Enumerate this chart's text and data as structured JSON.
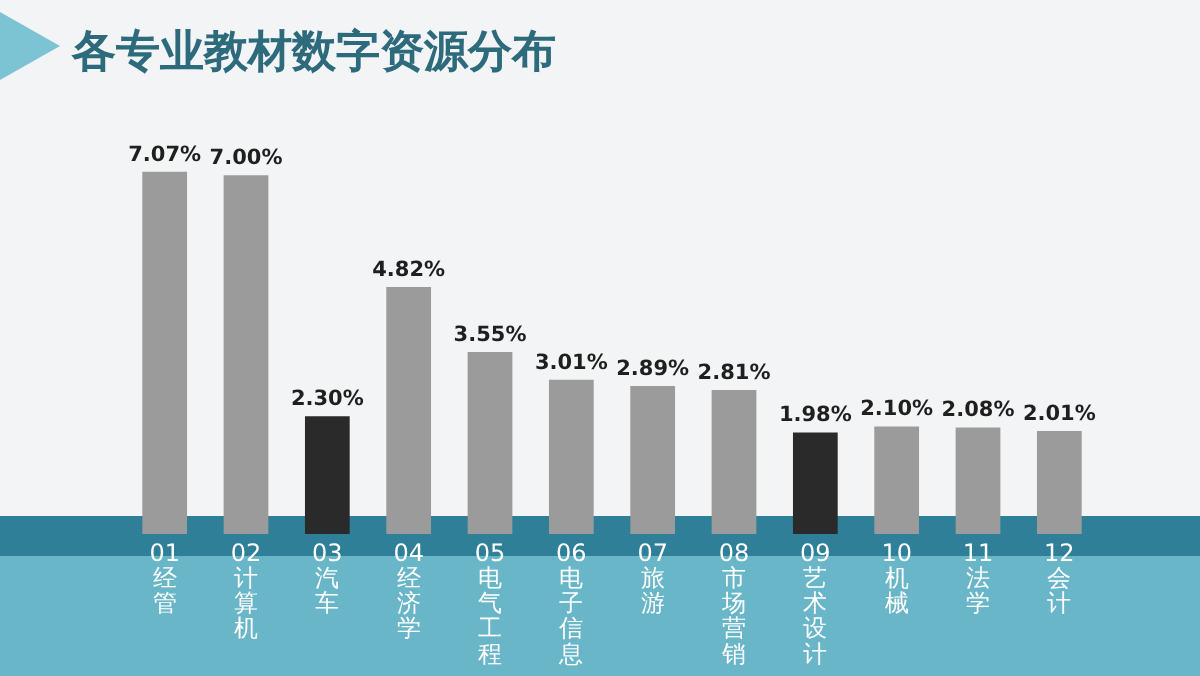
{
  "chart_data": {
    "type": "bar",
    "title": "各专业教材数字资源分布",
    "categories": [
      "01 经管",
      "02 计算机",
      "03 汽车",
      "04 经济学",
      "05 电气工程",
      "06 电子信息",
      "07 旅游",
      "08 市场营销",
      "09 艺术设计",
      "10 机械",
      "11 法学",
      "12 会计"
    ],
    "values": [
      7.07,
      7.0,
      2.3,
      4.82,
      3.55,
      3.01,
      2.89,
      2.81,
      1.98,
      2.1,
      2.08,
      2.01
    ],
    "value_labels": [
      "7.07%",
      "7.00%",
      "2.30%",
      "4.82%",
      "3.55%",
      "3.01%",
      "2.89%",
      "2.81%",
      "1.98%",
      "2.10%",
      "2.08%",
      "2.01%"
    ],
    "colors": [
      "#9b9b9b",
      "#9b9b9b",
      "#2a2a2a",
      "#9b9b9b",
      "#9b9b9b",
      "#9b9b9b",
      "#9b9b9b",
      "#9b9b9b",
      "#2a2a2a",
      "#9b9b9b",
      "#9b9b9b",
      "#9b9b9b"
    ],
    "grid": false,
    "legend": false
  }
}
